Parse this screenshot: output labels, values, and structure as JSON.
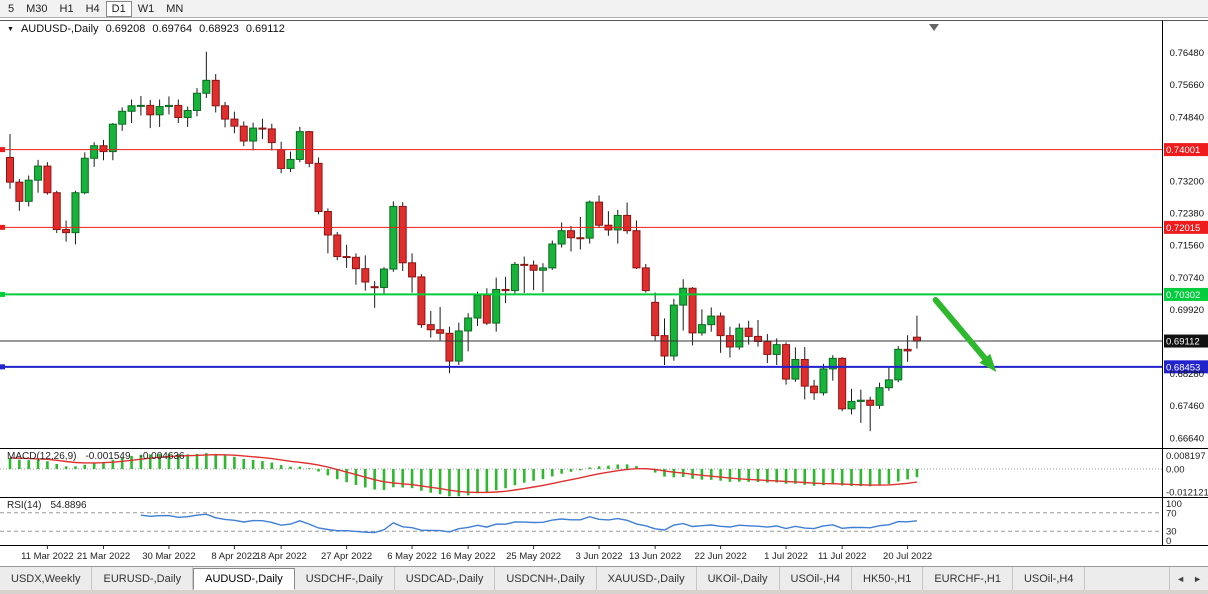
{
  "toolbar": {
    "timeframes": [
      "5",
      "M30",
      "H1",
      "H4",
      "D1",
      "W1",
      "MN"
    ],
    "active_timeframe": "D1"
  },
  "chart": {
    "symbol_period": "AUDUSD-,Daily",
    "open": "0.69208",
    "high": "0.69764",
    "low": "0.68923",
    "close": "0.69112"
  },
  "macd_display": {
    "label": "MACD(12,26,9)",
    "main": "-0.001549",
    "signal": "-0.004636"
  },
  "rsi_display": {
    "label": "RSI(14)",
    "value": "54.8896"
  },
  "chart_data": {
    "type": "candlestick",
    "symbol": "AUDUSD-",
    "timeframe": "Daily",
    "ohlc_format": [
      "date",
      "open",
      "high",
      "low",
      "close"
    ],
    "candles": [
      [
        "2022-03-07",
        0.738,
        0.744,
        0.73,
        0.7317
      ],
      [
        "2022-03-08",
        0.7317,
        0.7325,
        0.7244,
        0.7268
      ],
      [
        "2022-03-09",
        0.7268,
        0.7334,
        0.7255,
        0.7322
      ],
      [
        "2022-03-10",
        0.7322,
        0.7374,
        0.729,
        0.7358
      ],
      [
        "2022-03-11",
        0.7358,
        0.7368,
        0.7285,
        0.729
      ],
      [
        "2022-03-14",
        0.729,
        0.7295,
        0.7187,
        0.7196
      ],
      [
        "2022-03-15",
        0.7196,
        0.7219,
        0.7165,
        0.7188
      ],
      [
        "2022-03-16",
        0.7188,
        0.7295,
        0.7158,
        0.729
      ],
      [
        "2022-03-17",
        0.729,
        0.7393,
        0.7286,
        0.7378
      ],
      [
        "2022-03-18",
        0.7378,
        0.7419,
        0.7356,
        0.741
      ],
      [
        "2022-03-21",
        0.741,
        0.7425,
        0.7373,
        0.7395
      ],
      [
        "2022-03-22",
        0.7395,
        0.7468,
        0.7373,
        0.7465
      ],
      [
        "2022-03-23",
        0.7465,
        0.7508,
        0.7448,
        0.7498
      ],
      [
        "2022-03-24",
        0.7498,
        0.7528,
        0.7468,
        0.7512
      ],
      [
        "2022-03-25",
        0.7512,
        0.7537,
        0.7487,
        0.7513
      ],
      [
        "2022-03-28",
        0.7513,
        0.7527,
        0.7455,
        0.7489
      ],
      [
        "2022-03-29",
        0.7489,
        0.7528,
        0.7458,
        0.751
      ],
      [
        "2022-03-30",
        0.751,
        0.7536,
        0.749,
        0.7513
      ],
      [
        "2022-03-31",
        0.7513,
        0.7528,
        0.7468,
        0.7482
      ],
      [
        "2022-04-01",
        0.7482,
        0.751,
        0.7458,
        0.75
      ],
      [
        "2022-04-04",
        0.75,
        0.7557,
        0.7485,
        0.7544
      ],
      [
        "2022-04-05",
        0.7544,
        0.765,
        0.7532,
        0.7577
      ],
      [
        "2022-04-06",
        0.7577,
        0.7593,
        0.7495,
        0.7512
      ],
      [
        "2022-04-07",
        0.7512,
        0.7522,
        0.7457,
        0.7478
      ],
      [
        "2022-04-08",
        0.7478,
        0.7497,
        0.7442,
        0.746
      ],
      [
        "2022-04-11",
        0.746,
        0.7472,
        0.7409,
        0.7422
      ],
      [
        "2022-04-12",
        0.7422,
        0.7469,
        0.7398,
        0.7455
      ],
      [
        "2022-04-13",
        0.7455,
        0.7479,
        0.7427,
        0.7453
      ],
      [
        "2022-04-14",
        0.7453,
        0.7466,
        0.7398,
        0.7418
      ],
      [
        "2022-04-18",
        0.74,
        0.742,
        0.734,
        0.7352
      ],
      [
        "2022-04-19",
        0.7352,
        0.7395,
        0.7343,
        0.7375
      ],
      [
        "2022-04-20",
        0.7375,
        0.7458,
        0.7368,
        0.7446
      ],
      [
        "2022-04-21",
        0.7446,
        0.7448,
        0.7355,
        0.7365
      ],
      [
        "2022-04-22",
        0.7365,
        0.738,
        0.7235,
        0.7242
      ],
      [
        "2022-04-25",
        0.7242,
        0.725,
        0.7135,
        0.7182
      ],
      [
        "2022-04-26",
        0.7182,
        0.719,
        0.7118,
        0.7127
      ],
      [
        "2022-04-27",
        0.7127,
        0.7157,
        0.7098,
        0.7125
      ],
      [
        "2022-04-28",
        0.7125,
        0.7135,
        0.7055,
        0.7096
      ],
      [
        "2022-04-29",
        0.7096,
        0.713,
        0.704,
        0.7062
      ],
      [
        "2022-05-02",
        0.705,
        0.7064,
        0.6996,
        0.7048
      ],
      [
        "2022-05-03",
        0.7048,
        0.71,
        0.7029,
        0.7095
      ],
      [
        "2022-05-04",
        0.7095,
        0.7268,
        0.7088,
        0.7255
      ],
      [
        "2022-05-05",
        0.7255,
        0.7266,
        0.709,
        0.7111
      ],
      [
        "2022-05-06",
        0.7111,
        0.7135,
        0.7035,
        0.7075
      ],
      [
        "2022-05-09",
        0.7075,
        0.7082,
        0.6945,
        0.6953
      ],
      [
        "2022-05-10",
        0.6953,
        0.6988,
        0.692,
        0.694
      ],
      [
        "2022-05-11",
        0.694,
        0.6998,
        0.6913,
        0.6931
      ],
      [
        "2022-05-12",
        0.6931,
        0.6948,
        0.6829,
        0.686
      ],
      [
        "2022-05-13",
        0.686,
        0.6958,
        0.685,
        0.6937
      ],
      [
        "2022-05-16",
        0.6937,
        0.6982,
        0.6885,
        0.697
      ],
      [
        "2022-05-17",
        0.697,
        0.7037,
        0.695,
        0.7028
      ],
      [
        "2022-05-18",
        0.7028,
        0.7046,
        0.6952,
        0.6957
      ],
      [
        "2022-05-19",
        0.6957,
        0.7073,
        0.6935,
        0.7043
      ],
      [
        "2022-05-20",
        0.7043,
        0.7075,
        0.7008,
        0.704
      ],
      [
        "2022-05-23",
        0.704,
        0.7113,
        0.7032,
        0.7107
      ],
      [
        "2022-05-24",
        0.7107,
        0.7127,
        0.7034,
        0.7105
      ],
      [
        "2022-05-25",
        0.7105,
        0.7117,
        0.7041,
        0.7092
      ],
      [
        "2022-05-26",
        0.7092,
        0.711,
        0.7036,
        0.7098
      ],
      [
        "2022-05-27",
        0.7098,
        0.7168,
        0.7093,
        0.7159
      ],
      [
        "2022-05-30",
        0.7159,
        0.7214,
        0.715,
        0.7193
      ],
      [
        "2022-05-31",
        0.7193,
        0.7205,
        0.714,
        0.7175
      ],
      [
        "2022-06-01",
        0.7175,
        0.7228,
        0.7145,
        0.7174
      ],
      [
        "2022-06-02",
        0.7174,
        0.727,
        0.716,
        0.7266
      ],
      [
        "2022-06-03",
        0.7266,
        0.7283,
        0.72,
        0.7207
      ],
      [
        "2022-06-06",
        0.7207,
        0.7243,
        0.718,
        0.7195
      ],
      [
        "2022-06-07",
        0.7195,
        0.7246,
        0.716,
        0.7232
      ],
      [
        "2022-06-08",
        0.7232,
        0.7265,
        0.7185,
        0.7193
      ],
      [
        "2022-06-09",
        0.7193,
        0.7219,
        0.7095,
        0.7098
      ],
      [
        "2022-06-10",
        0.7098,
        0.7108,
        0.7035,
        0.704
      ],
      [
        "2022-06-13",
        0.701,
        0.7035,
        0.691,
        0.6925
      ],
      [
        "2022-06-14",
        0.6925,
        0.6969,
        0.685,
        0.6873
      ],
      [
        "2022-06-15",
        0.6873,
        0.7019,
        0.6861,
        0.7003
      ],
      [
        "2022-06-16",
        0.7003,
        0.7069,
        0.6938,
        0.7046
      ],
      [
        "2022-06-17",
        0.7046,
        0.7049,
        0.69,
        0.6932
      ],
      [
        "2022-06-20",
        0.6932,
        0.6992,
        0.6925,
        0.6953
      ],
      [
        "2022-06-21",
        0.6953,
        0.6997,
        0.6935,
        0.6975
      ],
      [
        "2022-06-22",
        0.6975,
        0.6984,
        0.6881,
        0.6925
      ],
      [
        "2022-06-23",
        0.6925,
        0.6948,
        0.6869,
        0.6896
      ],
      [
        "2022-06-24",
        0.6896,
        0.6956,
        0.6889,
        0.6944
      ],
      [
        "2022-06-27",
        0.6944,
        0.6963,
        0.6902,
        0.6923
      ],
      [
        "2022-06-28",
        0.6923,
        0.6965,
        0.6897,
        0.691
      ],
      [
        "2022-06-29",
        0.691,
        0.6929,
        0.6855,
        0.6877
      ],
      [
        "2022-06-30",
        0.6877,
        0.6918,
        0.685,
        0.6902
      ],
      [
        "2022-07-01",
        0.6902,
        0.6908,
        0.68,
        0.6814
      ],
      [
        "2022-07-04",
        0.6814,
        0.6895,
        0.6807,
        0.6864
      ],
      [
        "2022-07-05",
        0.6864,
        0.6896,
        0.6762,
        0.6796
      ],
      [
        "2022-07-06",
        0.6796,
        0.6812,
        0.6761,
        0.6779
      ],
      [
        "2022-07-07",
        0.6779,
        0.6853,
        0.6772,
        0.684
      ],
      [
        "2022-07-08",
        0.684,
        0.6875,
        0.681,
        0.6867
      ],
      [
        "2022-07-11",
        0.6867,
        0.687,
        0.6732,
        0.6738
      ],
      [
        "2022-07-12",
        0.6738,
        0.6789,
        0.6724,
        0.6757
      ],
      [
        "2022-07-13",
        0.6757,
        0.6787,
        0.6702,
        0.676
      ],
      [
        "2022-07-14",
        0.676,
        0.6769,
        0.6681,
        0.6747
      ],
      [
        "2022-07-15",
        0.6747,
        0.6805,
        0.6738,
        0.6792
      ],
      [
        "2022-07-18",
        0.6792,
        0.6843,
        0.6784,
        0.6812
      ],
      [
        "2022-07-19",
        0.6812,
        0.6898,
        0.6806,
        0.689
      ],
      [
        "2022-07-20",
        0.689,
        0.6926,
        0.6858,
        0.6886
      ],
      [
        "2022-07-21",
        0.6921,
        0.6976,
        0.6892,
        0.6911
      ]
    ],
    "price_axis_ticks": [
      0.7648,
      0.7566,
      0.7484,
      0.732,
      0.7238,
      0.7156,
      0.7074,
      0.6992,
      0.6828,
      0.6746,
      0.6664
    ],
    "x_axis_labels": [
      {
        "index": 4,
        "text": "11 Mar 2022"
      },
      {
        "index": 10,
        "text": "21 Mar 2022"
      },
      {
        "index": 17,
        "text": "30 Mar 2022"
      },
      {
        "index": 24,
        "text": "8 Apr 2022"
      },
      {
        "index": 29,
        "text": "18 Apr 2022"
      },
      {
        "index": 36,
        "text": "27 Apr 2022"
      },
      {
        "index": 43,
        "text": "6 May 2022"
      },
      {
        "index": 49,
        "text": "16 May 2022"
      },
      {
        "index": 56,
        "text": "25 May 2022"
      },
      {
        "index": 63,
        "text": "3 Jun 2022"
      },
      {
        "index": 69,
        "text": "13 Jun 2022"
      },
      {
        "index": 76,
        "text": "22 Jun 2022"
      },
      {
        "index": 83,
        "text": "1 Jul 2022"
      },
      {
        "index": 89,
        "text": "11 Jul 2022"
      },
      {
        "index": 96,
        "text": "20 Jul 2022"
      }
    ],
    "levels": [
      {
        "price": 0.74001,
        "label": "0.74001",
        "color": "#ee1c1c",
        "thickness": 1
      },
      {
        "price": 0.72015,
        "label": "0.72015",
        "color": "#ee1c1c",
        "thickness": 1
      },
      {
        "price": 0.70302,
        "label": "0.70302",
        "color": "#00cc3c",
        "thickness": 2
      },
      {
        "price": 0.69112,
        "label": "0.69112",
        "color": "#333333",
        "thickness": 1,
        "is_current": true,
        "label_bg": "#111111"
      },
      {
        "price": 0.68453,
        "label": "0.68453",
        "color": "#2222cc",
        "thickness": 2
      }
    ],
    "arrow_annotation": {
      "from_bar": 99,
      "from_price": 0.7016,
      "to_bar": 105.5,
      "to_price": 0.6832
    },
    "indicators": {
      "macd": {
        "label": "MACD(12,26,9)",
        "params": [
          12,
          26,
          9
        ],
        "main_value": -0.001549,
        "signal_value": -0.004636,
        "scale_labels": [
          "0.008197",
          "0.00",
          "-0.012121"
        ],
        "scale_max": 0.008197,
        "scale_min": -0.012121
      },
      "rsi": {
        "label": "RSI(14)",
        "period": 14,
        "value": 54.8896,
        "levels": [
          70,
          30
        ],
        "scale_labels": [
          "100",
          "70",
          "30",
          "0"
        ],
        "range": [
          0,
          100
        ]
      }
    }
  },
  "tabs": {
    "items": [
      "USDX,Weekly",
      "EURUSD-,Daily",
      "AUDUSD-,Daily",
      "USDCHF-,Daily",
      "USDCAD-,Daily",
      "USDCNH-,Daily",
      "XAUUSD-,Daily",
      "UKOil-,Daily",
      "USOil-,H4",
      "HK50-,H1",
      "EURCHF-,H1",
      "USOil-,H4"
    ],
    "active_index": 2,
    "left_arrow": "◄",
    "right_arrow": "►"
  },
  "colors": {
    "up": "#17b33a",
    "up_border": "#0b6b22",
    "down": "#df2e2e",
    "down_border": "#8f1414",
    "wick": "#1a1a1a",
    "macd_hist": "#2db82d",
    "macd_signal": "#e03030",
    "rsi_line": "#3f7fd6",
    "current_price": "#333333",
    "arrow": "#2eb82e",
    "axis_text": "#111111",
    "separator": "#000000"
  }
}
